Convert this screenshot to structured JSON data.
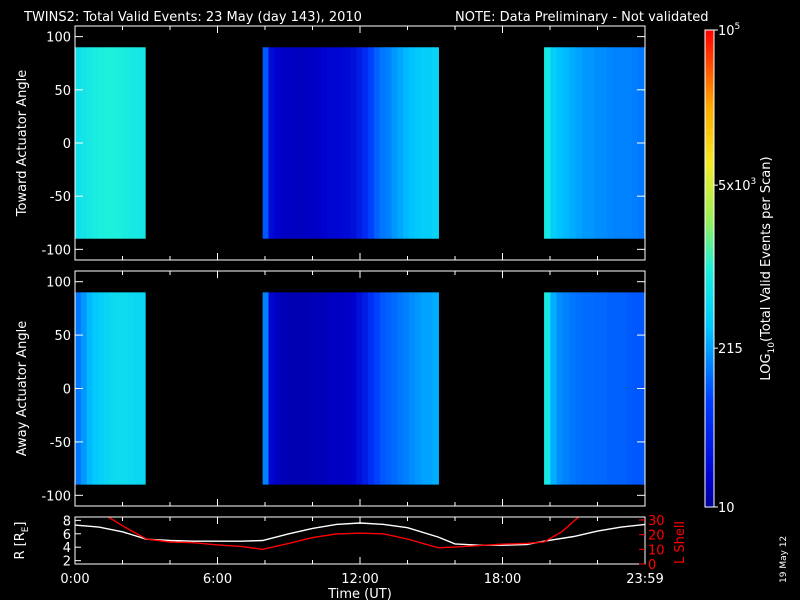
{
  "title": "TWINS2: Total Valid Events: 23 May (day 143), 2010",
  "note": "NOTE: Data Preliminary - Not validated",
  "date_stamp": "19 May 12",
  "colors": {
    "title": "#ffffff",
    "note": "#ff0000",
    "background": "#000000",
    "l_shell": "#ff0000",
    "radius": "#ffffff"
  },
  "chart_data": [
    {
      "type": "heatmap",
      "ylabel": "Toward Actuator Angle",
      "ylim": [
        -110,
        110
      ],
      "yticks": [
        "100",
        "50",
        "0",
        "-50",
        "-100"
      ],
      "angle_range": [
        -90,
        90
      ],
      "segments": [
        {
          "start_h": 0.0,
          "end_h": 2.95,
          "profile": [
            2.8,
            2.85,
            2.9,
            2.95,
            2.98,
            3.0,
            3.0,
            2.98,
            2.95,
            2.92,
            2.9,
            2.88
          ]
        },
        {
          "start_h": 7.9,
          "end_h": 15.3,
          "profile": [
            2.0,
            1.35,
            1.25,
            1.2,
            1.2,
            1.18,
            1.18,
            1.2,
            1.2,
            1.22,
            1.25,
            1.3,
            1.3,
            1.32,
            1.35,
            1.4,
            1.55,
            1.7,
            1.9,
            2.05,
            2.15,
            2.2,
            2.3,
            2.38,
            2.45,
            2.5,
            2.55,
            2.6,
            2.6,
            2.65
          ]
        },
        {
          "start_h": 19.75,
          "end_h": 23.99,
          "profile": [
            2.9,
            2.6,
            2.5,
            2.45,
            2.4,
            2.35,
            2.3,
            2.3,
            2.25,
            2.25,
            2.22,
            2.2,
            2.2,
            2.2,
            2.18,
            2.15
          ]
        }
      ]
    },
    {
      "type": "heatmap",
      "ylabel": "Away Actuator Angle",
      "ylim": [
        -110,
        110
      ],
      "yticks": [
        "100",
        "50",
        "0",
        "-50",
        "-100"
      ],
      "angle_range": [
        -90,
        90
      ],
      "segments": [
        {
          "start_h": 0.0,
          "end_h": 2.95,
          "profile": [
            2.15,
            2.3,
            2.45,
            2.55,
            2.62,
            2.68,
            2.72,
            2.75,
            2.75,
            2.72,
            2.7,
            2.7
          ]
        },
        {
          "start_h": 7.9,
          "end_h": 15.3,
          "profile": [
            2.2,
            1.3,
            1.18,
            1.15,
            1.12,
            1.12,
            1.12,
            1.12,
            1.14,
            1.15,
            1.15,
            1.18,
            1.2,
            1.2,
            1.22,
            1.25,
            1.4,
            1.55,
            1.75,
            1.9,
            2.0,
            2.05,
            2.1,
            2.15,
            2.2,
            2.25,
            2.3,
            2.35,
            2.35,
            2.4
          ]
        },
        {
          "start_h": 19.75,
          "end_h": 23.99,
          "profile": [
            2.9,
            2.4,
            2.25,
            2.2,
            2.15,
            2.12,
            2.1,
            2.1,
            2.08,
            2.08,
            2.05,
            2.05,
            2.05,
            2.02,
            2.0,
            2.0
          ]
        }
      ]
    },
    {
      "type": "line",
      "xlabel": "Time (UT)",
      "ylabel": "R [R",
      "ylabel_sub": "E",
      "ylabel_end": "]",
      "ylabel_right": "L Shell",
      "ylim": [
        1.5,
        8.5
      ],
      "yticks": [
        "8",
        "6",
        "4",
        "2"
      ],
      "ylim_right": [
        0,
        32
      ],
      "yticks_right": [
        "30",
        "20",
        "10",
        "0"
      ],
      "xlim": [
        0,
        24
      ],
      "xticks": [
        "0:00",
        "6:00",
        "12:00",
        "18:00",
        "23:59"
      ],
      "series": [
        {
          "color": "#ffffff",
          "x": [
            0,
            1,
            2,
            3,
            4,
            5,
            6,
            7,
            7.9,
            9,
            10,
            11,
            12,
            13,
            14,
            15.3,
            16,
            17,
            18,
            19,
            19.75,
            21,
            22,
            23,
            24
          ],
          "y": [
            7.3,
            7.0,
            6.3,
            5.2,
            5.0,
            4.9,
            4.9,
            4.9,
            5.0,
            6.0,
            6.8,
            7.4,
            7.6,
            7.4,
            6.9,
            5.5,
            4.5,
            4.3,
            4.3,
            4.4,
            4.9,
            5.6,
            6.4,
            7.0,
            7.4
          ]
        },
        {
          "color": "#ff0000",
          "axis": "right",
          "x": [
            1.4,
            2,
            3,
            4,
            5,
            6,
            7,
            7.9,
            9,
            10,
            11,
            12,
            13,
            14,
            15.3,
            16,
            17,
            18,
            19,
            19.75,
            20.5,
            21.2
          ],
          "y": [
            32,
            26,
            17,
            15,
            14.5,
            13,
            12,
            10,
            14,
            18,
            20.5,
            21,
            20.5,
            17,
            11,
            11.5,
            12.5,
            13.5,
            14,
            15,
            22,
            32
          ]
        }
      ]
    }
  ],
  "colorbar": {
    "label": "LOG",
    "label_sub": "10",
    "label_rest": "(Total Valid Events per Scan)",
    "min": 1,
    "max": 5,
    "ticks": [
      {
        "value": 5,
        "base": "10",
        "exp": "5"
      },
      {
        "value": 3.699,
        "base": "5x10",
        "exp": "3"
      },
      {
        "value": 2.332,
        "base": "215",
        "exp": ""
      },
      {
        "value": 1,
        "base": "10",
        "exp": ""
      }
    ]
  }
}
